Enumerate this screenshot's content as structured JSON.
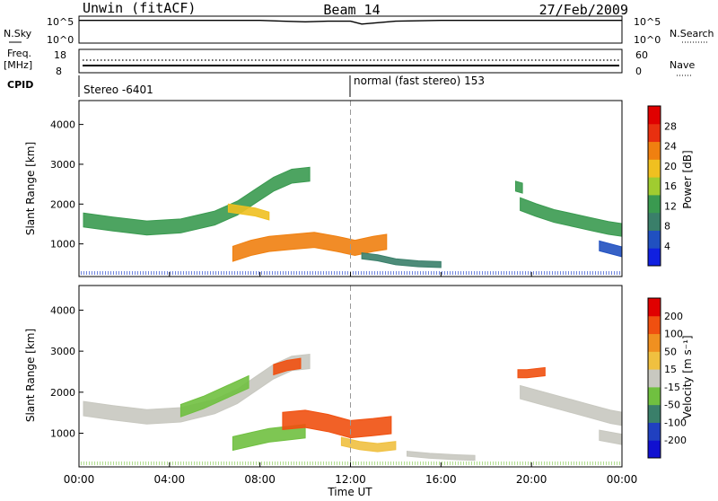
{
  "header": {
    "station": "Unwin (fitACF)",
    "beam": "Beam 14",
    "date": "27/Feb/2009"
  },
  "noise_panel": {
    "left_label": "N.Sky",
    "left_ticks": [
      "10^5",
      "10^0"
    ],
    "right_label": "N.Search",
    "right_ticks": [
      "10^5",
      "10^0"
    ]
  },
  "freq_panel": {
    "left_label_line1": "Freq.",
    "left_label_line2": "[MHz]",
    "left_ticks": [
      "18",
      "8"
    ],
    "right_label": "Nave",
    "right_ticks": [
      "60",
      "0"
    ]
  },
  "cpid": {
    "label": "CPID",
    "segments": [
      {
        "text": "Stereo -6401",
        "start_hour": 0
      },
      {
        "text": "normal (fast stereo) 153",
        "start_hour": 12
      }
    ]
  },
  "power_panel": {
    "ylabel": "Slant Range [km]",
    "yticks": [
      "4000",
      "3000",
      "2000",
      "1000"
    ],
    "colorbar_label": "Power [dB]",
    "colorbar_ticks": [
      "28",
      "24",
      "20",
      "16",
      "12",
      "8",
      "4"
    ]
  },
  "velocity_panel": {
    "ylabel": "Slant Range [km]",
    "yticks": [
      "4000",
      "3000",
      "2000",
      "1000"
    ],
    "colorbar_label": "Velocity [m s⁻¹]",
    "colorbar_ticks": [
      "200",
      "100",
      "50",
      "15",
      "-15",
      "-50",
      "-100",
      "-200"
    ]
  },
  "x_axis": {
    "label": "Time UT",
    "ticks": [
      "00:00",
      "04:00",
      "08:00",
      "12:00",
      "16:00",
      "20:00",
      "00:00"
    ]
  },
  "colors": {
    "power_scale": [
      "#1020e0",
      "#2050c0",
      "#3a7f6a",
      "#3a9a50",
      "#a0cc30",
      "#f0c020",
      "#f08010",
      "#e83010",
      "#e00000"
    ],
    "velocity_scale": [
      "#1010d0",
      "#2040c0",
      "#3a7f6a",
      "#70c040",
      "#c8c8c0",
      "#f0c040",
      "#f09020",
      "#f05010",
      "#e00000"
    ]
  },
  "chart_data": [
    {
      "type": "line",
      "title": "N.Sky / N.Search",
      "x_unit": "hour UT",
      "xlim": [
        0,
        24
      ],
      "ylim": [
        1,
        100000
      ],
      "yscale": "log",
      "series": [
        {
          "name": "N.Sky",
          "x": [
            0,
            2,
            4,
            6,
            7,
            8,
            9,
            10,
            11,
            12,
            12.5,
            14,
            16,
            18,
            20,
            22,
            24
          ],
          "y": [
            30000,
            30000,
            30000,
            30000,
            30000,
            30000,
            20000,
            15000,
            20000,
            20000,
            5000,
            20000,
            30000,
            30000,
            30000,
            30000,
            30000
          ]
        }
      ]
    },
    {
      "type": "line",
      "title": "Freq / Nave",
      "x_unit": "hour UT",
      "xlim": [
        0,
        24
      ],
      "series": [
        {
          "name": "Freq.",
          "x": [
            0,
            24
          ],
          "y": [
            12,
            12
          ]
        },
        {
          "name": "Nave",
          "x": [
            0,
            24
          ],
          "y": [
            13,
            13
          ]
        }
      ]
    },
    {
      "type": "heatmap",
      "title": "Power",
      "xlabel": "Time UT",
      "ylabel": "Slant Range [km]",
      "xlim": [
        0,
        24
      ],
      "ylim": [
        180,
        4600
      ],
      "value_unit": "dB",
      "color_range": [
        0,
        32
      ],
      "regions": [
        {
          "x": [
            0.2,
            1.5,
            3,
            4.5,
            6,
            7,
            7.8,
            8.6,
            9.4,
            10.2
          ],
          "y": [
            1600,
            1500,
            1400,
            1450,
            1650,
            1900,
            2200,
            2500,
            2700,
            2750
          ],
          "thickness": 350,
          "value": 11
        },
        {
          "x": [
            6.6,
            7.2,
            7.8,
            8.4
          ],
          "y": [
            1900,
            1850,
            1800,
            1700
          ],
          "thickness": 200,
          "value": 19
        },
        {
          "x": [
            6.8,
            7.6,
            8.4,
            9.4,
            10.4,
            11.4,
            12.2,
            13.0,
            13.6
          ],
          "y": [
            750,
            900,
            1000,
            1050,
            1100,
            1000,
            900,
            1000,
            1050
          ],
          "thickness": 380,
          "value": 24
        },
        {
          "x": [
            12.5,
            13.2,
            14.0,
            15.0,
            16.0
          ],
          "y": [
            700,
            650,
            550,
            500,
            480
          ],
          "thickness": 150,
          "value": 8
        },
        {
          "x": [
            19.5,
            20.2,
            21.0,
            21.8,
            22.6,
            23.4,
            24
          ],
          "y": [
            2000,
            1850,
            1700,
            1600,
            1500,
            1400,
            1350
          ],
          "thickness": 320,
          "value": 11
        },
        {
          "x": [
            19.3,
            19.6
          ],
          "y": [
            2450,
            2400
          ],
          "thickness": 250,
          "value": 12
        },
        {
          "x": [
            23.0,
            24.0
          ],
          "y": [
            950,
            800
          ],
          "thickness": 250,
          "value": 6
        }
      ]
    },
    {
      "type": "heatmap",
      "title": "Velocity",
      "xlabel": "Time UT",
      "ylabel": "Slant Range [km]",
      "xlim": [
        0,
        24
      ],
      "ylim": [
        180,
        4600
      ],
      "value_unit": "m s-1",
      "color_range": [
        -250,
        250
      ],
      "regions": [
        {
          "x": [
            0.2,
            1.5,
            3,
            4.5,
            6,
            7,
            7.8,
            8.6,
            9.4,
            10.2
          ],
          "y": [
            1600,
            1500,
            1400,
            1450,
            1650,
            1900,
            2200,
            2500,
            2700,
            2750
          ],
          "thickness": 350,
          "value": 0
        },
        {
          "x": [
            4.5,
            5.5,
            6.5,
            7.5
          ],
          "y": [
            1550,
            1750,
            2000,
            2250
          ],
          "thickness": 300,
          "value": -40
        },
        {
          "x": [
            8.6,
            9.2,
            9.8
          ],
          "y": [
            2550,
            2650,
            2700
          ],
          "thickness": 250,
          "value": 150
        },
        {
          "x": [
            6.8,
            7.6,
            8.4,
            9.2,
            10.0
          ],
          "y": [
            750,
            850,
            950,
            1000,
            1050
          ],
          "thickness": 330,
          "value": -60
        },
        {
          "x": [
            9.0,
            10.0,
            11.0,
            12.0,
            13.0,
            13.8
          ],
          "y": [
            1300,
            1350,
            1250,
            1100,
            1150,
            1200
          ],
          "thickness": 420,
          "value": 180
        },
        {
          "x": [
            11.6,
            12.4,
            13.2,
            14.0
          ],
          "y": [
            800,
            700,
            650,
            700
          ],
          "thickness": 200,
          "value": 40
        },
        {
          "x": [
            14.5,
            15.5,
            16.5,
            17.5
          ],
          "y": [
            500,
            450,
            420,
            400
          ],
          "thickness": 120,
          "value": -25
        },
        {
          "x": [
            19.5,
            20.5,
            21.5,
            22.5,
            23.5,
            24
          ],
          "y": [
            2000,
            1850,
            1700,
            1550,
            1400,
            1350
          ],
          "thickness": 320,
          "value": 0
        },
        {
          "x": [
            19.4,
            19.8,
            20.6
          ],
          "y": [
            2450,
            2450,
            2500
          ],
          "thickness": 200,
          "value": 150
        },
        {
          "x": [
            23.0,
            24.0
          ],
          "y": [
            950,
            850
          ],
          "thickness": 250,
          "value": 0
        }
      ]
    }
  ]
}
